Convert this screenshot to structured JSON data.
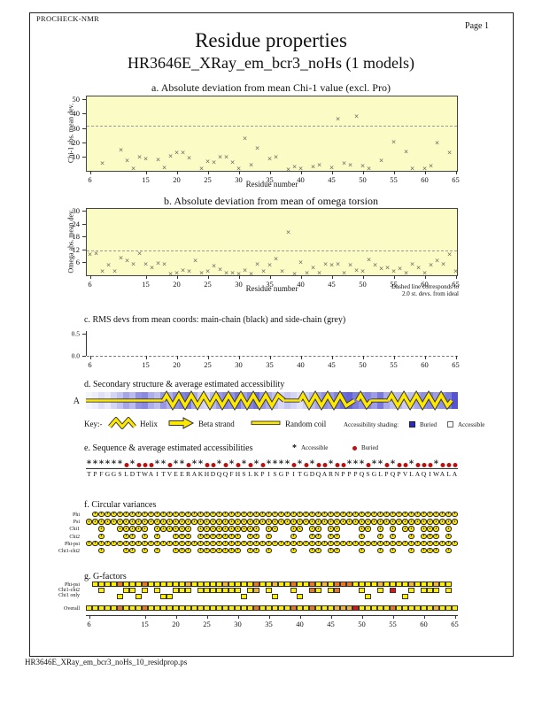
{
  "header": {
    "app": "PROCHECK-NMR",
    "page": "Page  1",
    "title": "Residue properties",
    "subtitle": "HR3646E_XRay_em_bcr3_noHs (1 models)"
  },
  "footer": {
    "filename": "HR3646E_XRay_em_bcr3_noHs_10_residprop.ps"
  },
  "colors": {
    "plot_bg": "#fbfbc6",
    "marker": "#555555",
    "buried_blue": "#2828c8",
    "circle_yellow": "#ffe800",
    "yellow": "#ffee00",
    "orange": "#e87820",
    "lightorange": "#f2b53a",
    "red": "#dd1515",
    "buried_dot": "#bb1111"
  },
  "axis": {
    "min": 6,
    "max": 65,
    "ticks": [
      6,
      15,
      20,
      25,
      30,
      35,
      40,
      45,
      50,
      55,
      60,
      65
    ]
  },
  "chart_data": [
    {
      "id": "chi1",
      "type": "scatter",
      "title": "a. Absolute deviation from mean Chi-1 value (excl. Pro)",
      "xlabel": "Residue number",
      "ylabel": "Chi-1 abs. mean dev.",
      "xlim": [
        6,
        65
      ],
      "ylim": [
        0,
        52
      ],
      "yticks": [
        10,
        20,
        30,
        40,
        50
      ],
      "dashed_line": 31.5,
      "grid": false,
      "x": [
        8,
        11,
        12,
        13,
        14,
        15,
        17,
        18,
        19,
        20,
        21,
        22,
        24,
        25,
        26,
        27,
        28,
        29,
        30,
        31,
        32,
        33,
        35,
        36,
        38,
        39,
        40,
        42,
        43,
        45,
        46,
        47,
        48,
        49,
        50,
        51,
        53,
        55,
        57,
        58,
        60,
        61,
        62,
        64
      ],
      "y": [
        5,
        14.5,
        7,
        1,
        9,
        8,
        7.5,
        2,
        10,
        12.5,
        12.5,
        8.5,
        1,
        6,
        5.5,
        9,
        9.5,
        5.5,
        1.5,
        22,
        3.5,
        15.5,
        8,
        9,
        0.5,
        2.5,
        1,
        2.5,
        3.5,
        2,
        36,
        5,
        4,
        37.5,
        3,
        1.5,
        7,
        20,
        13,
        1.5,
        1.5,
        3,
        19,
        12.5
      ]
    },
    {
      "id": "omega",
      "type": "scatter",
      "title": "b. Absolute deviation from mean of omega torsion",
      "xlabel": "Residue number",
      "ylabel": "Omega abs. mean dev.",
      "xlim": [
        6,
        65
      ],
      "ylim": [
        0,
        31
      ],
      "yticks": [
        6,
        12,
        18,
        24,
        30
      ],
      "dashed_line": 11.5,
      "note_line1": "Dashed line corresponds to",
      "note_line2": "2.0 st. devs. from ideal",
      "grid": false,
      "x": [
        6,
        7,
        8,
        9,
        10,
        11,
        12,
        13,
        14,
        15,
        16,
        17,
        18,
        19,
        20,
        21,
        22,
        23,
        24,
        25,
        26,
        27,
        28,
        29,
        30,
        31,
        32,
        33,
        34,
        35,
        36,
        37,
        38,
        39,
        40,
        41,
        42,
        43,
        44,
        45,
        46,
        47,
        48,
        49,
        50,
        51,
        52,
        53,
        54,
        55,
        56,
        57,
        58,
        59,
        60,
        61,
        62,
        63,
        64,
        65
      ],
      "y": [
        9.5,
        10,
        1.5,
        4.5,
        1.5,
        8,
        6.5,
        5,
        10,
        4.8,
        3.5,
        5.5,
        5,
        0.5,
        1,
        2,
        1.5,
        6.5,
        1,
        1.5,
        4,
        2.5,
        0.8,
        1,
        0.5,
        2,
        0.3,
        4.8,
        1.5,
        4.5,
        7.5,
        1.5,
        20,
        0.3,
        5.8,
        1,
        3.5,
        1,
        4.8,
        4.5,
        5,
        1,
        4.5,
        2,
        1.8,
        7,
        4.5,
        3,
        3.5,
        1.8,
        3,
        1,
        5,
        3.5,
        1,
        4.5,
        6.8,
        4.8,
        9.5,
        1.5
      ]
    },
    {
      "id": "rms",
      "type": "line",
      "title": "c. RMS devs from mean coords: main-chain (black) and side-chain (grey)",
      "xlim": [
        6,
        65
      ],
      "ylim": [
        0,
        0.55
      ],
      "yticks_labeled": [
        [
          0.5,
          "0.5"
        ],
        [
          0,
          "0.0"
        ]
      ],
      "series": [
        {
          "name": "main-chain",
          "color": "#000000",
          "values": "all zero (1 model)"
        },
        {
          "name": "side-chain",
          "color": "#999999",
          "values": "all zero (1 model)"
        }
      ]
    }
  ],
  "secondary": {
    "title": "d. Secondary structure & average estimated accessibility",
    "row_label": "A",
    "key_label": "Key:-",
    "helix_label": "Helix",
    "beta_label": "Beta strand",
    "coil_label": "Random coil",
    "shading_label": "Accessibility shading:",
    "buried_label": "Buried",
    "accessible_label": "Accessible",
    "segments": [
      {
        "type": "coil",
        "from": 6,
        "to": 18.5
      },
      {
        "type": "helix",
        "from": 18.5,
        "to": 38
      },
      {
        "type": "coil",
        "from": 38,
        "to": 40.5
      },
      {
        "type": "helix",
        "from": 40.5,
        "to": 49.3
      },
      {
        "type": "helix",
        "from": 49.8,
        "to": 52
      },
      {
        "type": "coil",
        "from": 52,
        "to": 54.8
      },
      {
        "type": "helix",
        "from": 54.8,
        "to": 65
      }
    ],
    "shading_alpha": [
      0.05,
      0.08,
      0.15,
      0.1,
      0.2,
      0.28,
      0.42,
      0.32,
      0.5,
      0.55,
      0.38,
      0.3,
      0.48,
      0.36,
      0.52,
      0.58,
      0.62,
      0.4,
      0.22,
      0.18,
      0.33,
      0.46,
      0.55,
      0.5,
      0.62,
      0.44,
      0.56,
      0.66,
      0.48,
      0.38,
      0.28,
      0.18,
      0.26,
      0.2,
      0.14,
      0.22,
      0.32,
      0.42,
      0.52,
      0.46,
      0.58,
      0.68,
      0.72,
      0.6,
      0.5,
      0.56,
      0.46,
      0.62,
      0.4,
      0.3,
      0.34,
      0.24,
      0.3,
      0.42,
      0.52,
      0.56,
      0.46,
      0.52,
      0.62,
      0.8
    ]
  },
  "sequence_panel": {
    "title": "e. Sequence & average estimated accessibilities",
    "accessible_label": "Accessible",
    "buried_label": "Buried",
    "sequence": "TPFGGSLDTWAITVEERAKHDQQFHSLKPISGPITGDQARNPPPQSGLPQPVLAQIWALA",
    "buried_positions": [
      7,
      9,
      10,
      11,
      14,
      17,
      20,
      21,
      23,
      25,
      27,
      29,
      34,
      36,
      38,
      39,
      41,
      42,
      46,
      49,
      51,
      52,
      54,
      55,
      56,
      58,
      59,
      60
    ]
  },
  "circular": {
    "title": "f. Circular variances",
    "rows": [
      {
        "label": "Phi",
        "range": {
          "from": 2,
          "to": 60
        }
      },
      {
        "label": "Psi",
        "range": {
          "from": 1,
          "to": 60
        }
      },
      {
        "label": "Chi1",
        "list": [
          3,
          6,
          7,
          8,
          9,
          10,
          12,
          13,
          14,
          15,
          16,
          17,
          19,
          20,
          21,
          22,
          23,
          24,
          25,
          26,
          27,
          28,
          30,
          31,
          34,
          35,
          37,
          38,
          40,
          41,
          45,
          46,
          48,
          50,
          52,
          53,
          55,
          56,
          57,
          59
        ]
      },
      {
        "label": "Chi2",
        "list": [
          3,
          7,
          8,
          10,
          12,
          15,
          16,
          17,
          19,
          20,
          21,
          22,
          23,
          24,
          25,
          27,
          28,
          30,
          34,
          37,
          38,
          40,
          41,
          45,
          48,
          50,
          53,
          55,
          56,
          57,
          59
        ]
      },
      {
        "label": "Phi-psi",
        "range": {
          "from": 1,
          "to": 60
        }
      },
      {
        "label": "Chi1-chi2",
        "list": [
          3,
          7,
          8,
          10,
          12,
          15,
          16,
          17,
          19,
          20,
          21,
          22,
          23,
          24,
          25,
          27,
          28,
          30,
          34,
          37,
          38,
          40,
          41,
          45,
          48,
          50,
          53,
          55,
          56,
          57,
          59
        ]
      }
    ]
  },
  "gfactors": {
    "title": "g. G-factors",
    "rows": [
      {
        "label": "Phi-psi",
        "level": 0,
        "range": {
          "from": 2,
          "to": 59
        },
        "colors": {
          "6": "orange",
          "10": "orange",
          "17": "lightorange",
          "23": "lightorange",
          "28": "orange",
          "31": "lightorange",
          "34": "orange",
          "37": "orange",
          "39": "lightorange",
          "41": "orange",
          "42": "orange",
          "43": "orange",
          "48": "lightorange",
          "53": "lightorange",
          "57": "lightorange"
        }
      },
      {
        "label": "Chi1-chi2",
        "level": 1,
        "list": [
          3,
          7,
          8,
          10,
          12,
          15,
          16,
          17,
          19,
          20,
          21,
          22,
          23,
          24,
          25,
          27,
          28,
          30,
          34,
          37,
          38,
          40,
          41,
          45,
          48,
          50,
          53,
          55,
          56,
          57,
          59
        ],
        "colors": {
          "28": "lightorange",
          "37": "orange",
          "41": "orange",
          "42": "orange",
          "43": "orange",
          "44": "red",
          "50": "red"
        }
      },
      {
        "label": "Chi1 only",
        "level": 2,
        "list": [
          6,
          9,
          13,
          14,
          26,
          31,
          35,
          46,
          52
        ],
        "colors": {}
      }
    ],
    "overall": {
      "label": "Overall",
      "range": {
        "from": 1,
        "to": 60
      },
      "colors": {
        "6": "orange",
        "10": "orange",
        "28": "orange",
        "34": "orange",
        "37": "orange",
        "41": "lightorange",
        "42": "lightorange",
        "43": "lightorange",
        "44": "red",
        "50": "orange",
        "57": "lightorange"
      }
    }
  }
}
